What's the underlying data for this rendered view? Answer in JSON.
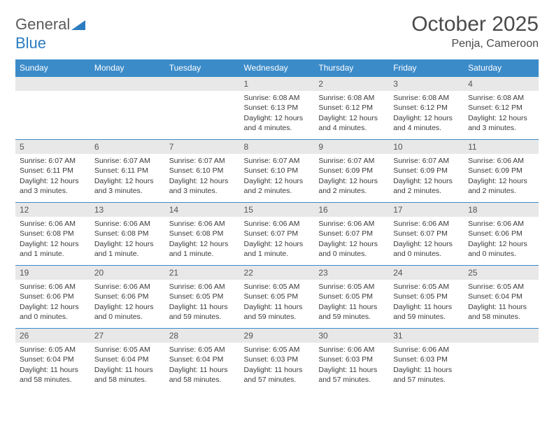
{
  "brand": {
    "part1": "General",
    "part2": "Blue"
  },
  "title": "October 2025",
  "location": "Penja, Cameroon",
  "colors": {
    "header_bg": "#3b8bc9",
    "header_text": "#ffffff",
    "row_border": "#3b8bc9",
    "daynum_bg": "#e8e8e8",
    "daynum_text": "#555555",
    "body_text": "#3a3a3a",
    "brand_gray": "#5a5a5a",
    "brand_blue": "#2b7bbf"
  },
  "weekdays": [
    "Sunday",
    "Monday",
    "Tuesday",
    "Wednesday",
    "Thursday",
    "Friday",
    "Saturday"
  ],
  "weeks": [
    [
      null,
      null,
      null,
      {
        "n": "1",
        "sr": "Sunrise: 6:08 AM",
        "ss": "Sunset: 6:13 PM",
        "dl": "Daylight: 12 hours and 4 minutes."
      },
      {
        "n": "2",
        "sr": "Sunrise: 6:08 AM",
        "ss": "Sunset: 6:12 PM",
        "dl": "Daylight: 12 hours and 4 minutes."
      },
      {
        "n": "3",
        "sr": "Sunrise: 6:08 AM",
        "ss": "Sunset: 6:12 PM",
        "dl": "Daylight: 12 hours and 4 minutes."
      },
      {
        "n": "4",
        "sr": "Sunrise: 6:08 AM",
        "ss": "Sunset: 6:12 PM",
        "dl": "Daylight: 12 hours and 3 minutes."
      }
    ],
    [
      {
        "n": "5",
        "sr": "Sunrise: 6:07 AM",
        "ss": "Sunset: 6:11 PM",
        "dl": "Daylight: 12 hours and 3 minutes."
      },
      {
        "n": "6",
        "sr": "Sunrise: 6:07 AM",
        "ss": "Sunset: 6:11 PM",
        "dl": "Daylight: 12 hours and 3 minutes."
      },
      {
        "n": "7",
        "sr": "Sunrise: 6:07 AM",
        "ss": "Sunset: 6:10 PM",
        "dl": "Daylight: 12 hours and 3 minutes."
      },
      {
        "n": "8",
        "sr": "Sunrise: 6:07 AM",
        "ss": "Sunset: 6:10 PM",
        "dl": "Daylight: 12 hours and 2 minutes."
      },
      {
        "n": "9",
        "sr": "Sunrise: 6:07 AM",
        "ss": "Sunset: 6:09 PM",
        "dl": "Daylight: 12 hours and 2 minutes."
      },
      {
        "n": "10",
        "sr": "Sunrise: 6:07 AM",
        "ss": "Sunset: 6:09 PM",
        "dl": "Daylight: 12 hours and 2 minutes."
      },
      {
        "n": "11",
        "sr": "Sunrise: 6:06 AM",
        "ss": "Sunset: 6:09 PM",
        "dl": "Daylight: 12 hours and 2 minutes."
      }
    ],
    [
      {
        "n": "12",
        "sr": "Sunrise: 6:06 AM",
        "ss": "Sunset: 6:08 PM",
        "dl": "Daylight: 12 hours and 1 minute."
      },
      {
        "n": "13",
        "sr": "Sunrise: 6:06 AM",
        "ss": "Sunset: 6:08 PM",
        "dl": "Daylight: 12 hours and 1 minute."
      },
      {
        "n": "14",
        "sr": "Sunrise: 6:06 AM",
        "ss": "Sunset: 6:08 PM",
        "dl": "Daylight: 12 hours and 1 minute."
      },
      {
        "n": "15",
        "sr": "Sunrise: 6:06 AM",
        "ss": "Sunset: 6:07 PM",
        "dl": "Daylight: 12 hours and 1 minute."
      },
      {
        "n": "16",
        "sr": "Sunrise: 6:06 AM",
        "ss": "Sunset: 6:07 PM",
        "dl": "Daylight: 12 hours and 0 minutes."
      },
      {
        "n": "17",
        "sr": "Sunrise: 6:06 AM",
        "ss": "Sunset: 6:07 PM",
        "dl": "Daylight: 12 hours and 0 minutes."
      },
      {
        "n": "18",
        "sr": "Sunrise: 6:06 AM",
        "ss": "Sunset: 6:06 PM",
        "dl": "Daylight: 12 hours and 0 minutes."
      }
    ],
    [
      {
        "n": "19",
        "sr": "Sunrise: 6:06 AM",
        "ss": "Sunset: 6:06 PM",
        "dl": "Daylight: 12 hours and 0 minutes."
      },
      {
        "n": "20",
        "sr": "Sunrise: 6:06 AM",
        "ss": "Sunset: 6:06 PM",
        "dl": "Daylight: 12 hours and 0 minutes."
      },
      {
        "n": "21",
        "sr": "Sunrise: 6:06 AM",
        "ss": "Sunset: 6:05 PM",
        "dl": "Daylight: 11 hours and 59 minutes."
      },
      {
        "n": "22",
        "sr": "Sunrise: 6:05 AM",
        "ss": "Sunset: 6:05 PM",
        "dl": "Daylight: 11 hours and 59 minutes."
      },
      {
        "n": "23",
        "sr": "Sunrise: 6:05 AM",
        "ss": "Sunset: 6:05 PM",
        "dl": "Daylight: 11 hours and 59 minutes."
      },
      {
        "n": "24",
        "sr": "Sunrise: 6:05 AM",
        "ss": "Sunset: 6:05 PM",
        "dl": "Daylight: 11 hours and 59 minutes."
      },
      {
        "n": "25",
        "sr": "Sunrise: 6:05 AM",
        "ss": "Sunset: 6:04 PM",
        "dl": "Daylight: 11 hours and 58 minutes."
      }
    ],
    [
      {
        "n": "26",
        "sr": "Sunrise: 6:05 AM",
        "ss": "Sunset: 6:04 PM",
        "dl": "Daylight: 11 hours and 58 minutes."
      },
      {
        "n": "27",
        "sr": "Sunrise: 6:05 AM",
        "ss": "Sunset: 6:04 PM",
        "dl": "Daylight: 11 hours and 58 minutes."
      },
      {
        "n": "28",
        "sr": "Sunrise: 6:05 AM",
        "ss": "Sunset: 6:04 PM",
        "dl": "Daylight: 11 hours and 58 minutes."
      },
      {
        "n": "29",
        "sr": "Sunrise: 6:05 AM",
        "ss": "Sunset: 6:03 PM",
        "dl": "Daylight: 11 hours and 57 minutes."
      },
      {
        "n": "30",
        "sr": "Sunrise: 6:06 AM",
        "ss": "Sunset: 6:03 PM",
        "dl": "Daylight: 11 hours and 57 minutes."
      },
      {
        "n": "31",
        "sr": "Sunrise: 6:06 AM",
        "ss": "Sunset: 6:03 PM",
        "dl": "Daylight: 11 hours and 57 minutes."
      },
      null
    ]
  ]
}
